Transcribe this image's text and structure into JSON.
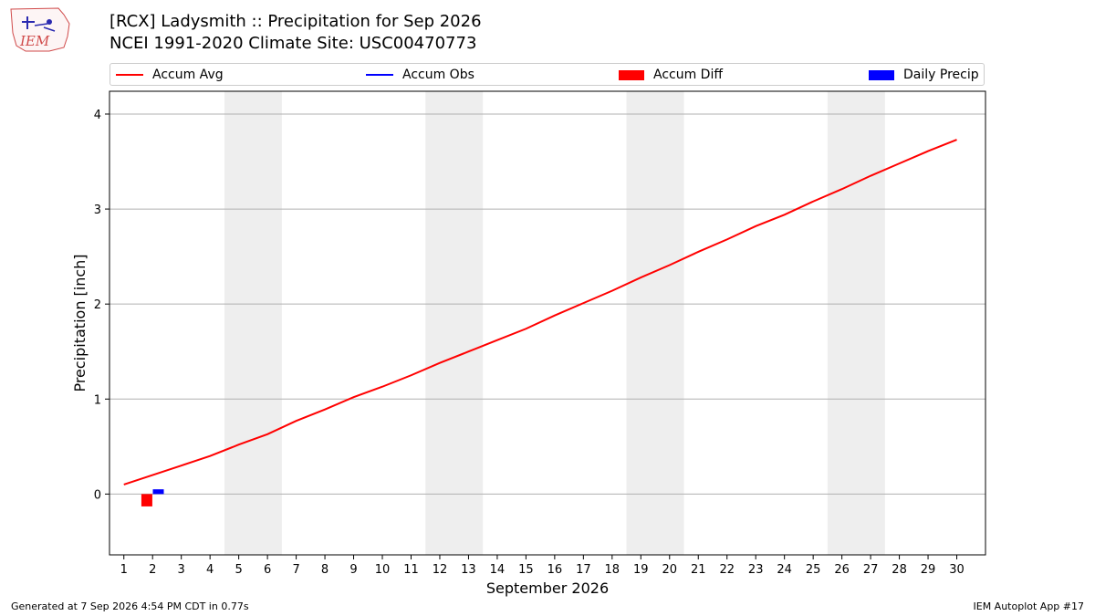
{
  "header": {
    "title": "[RCX] Ladysmith :: Precipitation for Sep 2026",
    "subtitle": "NCEI 1991-2020 Climate Site: USC00470773",
    "logo_text": "IEM"
  },
  "legend": [
    {
      "label": "Accum Avg",
      "kind": "line",
      "color": "#ff0000"
    },
    {
      "label": "Accum Obs",
      "kind": "line",
      "color": "#0000ff"
    },
    {
      "label": "Accum Diff",
      "kind": "box",
      "color": "#ff0000"
    },
    {
      "label": "Daily Precip",
      "kind": "box",
      "color": "#0000ff"
    }
  ],
  "footer": {
    "left": "Generated at 7 Sep 2026 4:54 PM CDT in 0.77s",
    "right": "IEM Autoplot App #17"
  },
  "chart_data": {
    "type": "line",
    "xlabel": "September 2026",
    "ylabel": "Precipitation [inch]",
    "xlim": [
      0.5,
      31
    ],
    "ylim": [
      -0.64,
      4.24
    ],
    "yticks": [
      0,
      1,
      2,
      3,
      4
    ],
    "x": [
      1,
      2,
      3,
      4,
      5,
      6,
      7,
      8,
      9,
      10,
      11,
      12,
      13,
      14,
      15,
      16,
      17,
      18,
      19,
      20,
      21,
      22,
      23,
      24,
      25,
      26,
      27,
      28,
      29,
      30
    ],
    "grid": "horizontal",
    "weekend_shading": [
      [
        4.5,
        6.5
      ],
      [
        11.5,
        13.5
      ],
      [
        18.5,
        20.5
      ],
      [
        25.5,
        27.5
      ]
    ],
    "series": [
      {
        "name": "Accum Avg",
        "type": "line",
        "color": "#ff0000",
        "values": [
          0.1,
          0.2,
          0.3,
          0.4,
          0.52,
          0.63,
          0.77,
          0.89,
          1.02,
          1.13,
          1.25,
          1.38,
          1.5,
          1.62,
          1.74,
          1.88,
          2.01,
          2.14,
          2.28,
          2.41,
          2.55,
          2.68,
          2.82,
          2.94,
          3.08,
          3.21,
          3.35,
          3.48,
          3.61,
          3.73
        ]
      },
      {
        "name": "Accum Diff",
        "type": "bar",
        "color": "#ff0000",
        "x": [
          1.8
        ],
        "values": [
          -0.13
        ]
      },
      {
        "name": "Daily Precip",
        "type": "bar",
        "color": "#0000ff",
        "x": [
          2.2
        ],
        "values": [
          0.05
        ]
      }
    ]
  }
}
